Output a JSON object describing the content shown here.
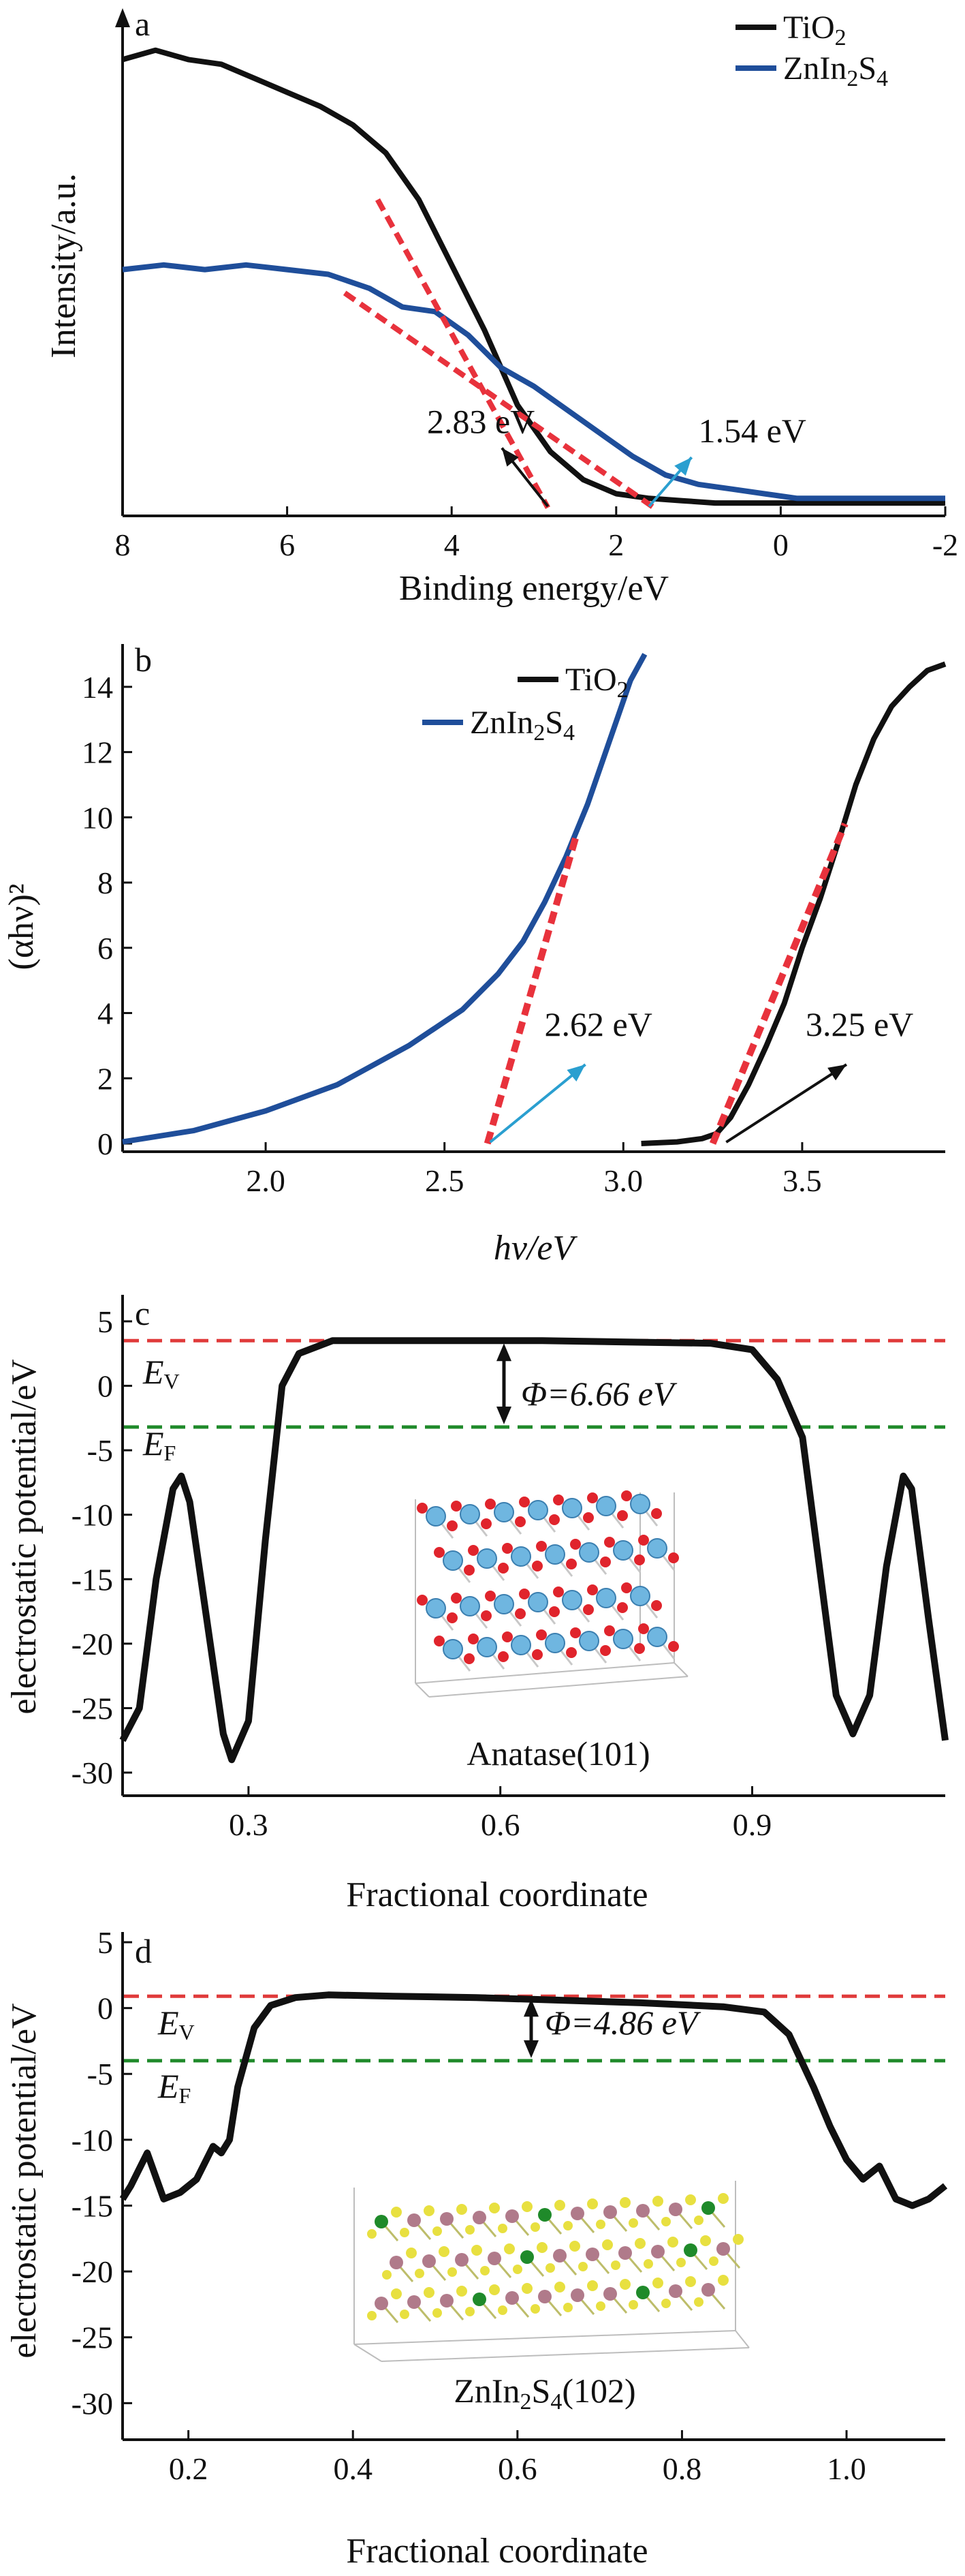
{
  "colors": {
    "tio2": "#111111",
    "znin2s4": "#1f4e9a",
    "fit": "#e8323c",
    "ev_line": "#e03a3a",
    "ef_line": "#1f8a2a",
    "arrow_a": "#111111",
    "arrow_b": "#2a9fd0"
  },
  "chart_data": [
    {
      "id": "a",
      "type": "line",
      "panel_label": "a",
      "xlabel": "Binding energy/eV",
      "ylabel": "Intensity/a.u.",
      "xlim": [
        8,
        -2
      ],
      "ylim": [
        0,
        1
      ],
      "xticks": [
        "8",
        "6",
        "4",
        "2",
        "0",
        "-2"
      ],
      "legend": [
        "TiO2",
        "ZnIn2S4"
      ],
      "series": [
        {
          "name": "TiO2",
          "color": "#111111",
          "x": [
            8.0,
            7.6,
            7.2,
            6.8,
            6.4,
            6.0,
            5.6,
            5.2,
            4.8,
            4.4,
            4.0,
            3.6,
            3.2,
            2.8,
            2.4,
            2.0,
            1.6,
            1.2,
            0.8,
            0.4,
            0.0,
            -0.5,
            -1.0,
            -1.5,
            -2.0
          ],
          "y": [
            0.96,
            0.98,
            0.96,
            0.95,
            0.92,
            0.89,
            0.86,
            0.82,
            0.76,
            0.66,
            0.52,
            0.38,
            0.22,
            0.12,
            0.06,
            0.03,
            0.02,
            0.015,
            0.01,
            0.01,
            0.01,
            0.01,
            0.01,
            0.01,
            0.01
          ]
        },
        {
          "name": "ZnIn2S4",
          "color": "#1f4e9a",
          "x": [
            8.0,
            7.5,
            7.0,
            6.5,
            6.0,
            5.5,
            5.0,
            4.6,
            4.2,
            3.8,
            3.4,
            3.0,
            2.6,
            2.2,
            1.8,
            1.4,
            1.0,
            0.6,
            0.2,
            -0.2,
            -0.6,
            -1.0,
            -1.5,
            -2.0
          ],
          "y": [
            0.51,
            0.52,
            0.51,
            0.52,
            0.51,
            0.5,
            0.47,
            0.43,
            0.42,
            0.37,
            0.3,
            0.26,
            0.21,
            0.16,
            0.11,
            0.07,
            0.05,
            0.04,
            0.03,
            0.02,
            0.02,
            0.02,
            0.02,
            0.02
          ]
        }
      ],
      "fits": [
        {
          "x": [
            4.9,
            2.83
          ],
          "y": [
            0.66,
            0.0
          ]
        },
        {
          "x": [
            5.3,
            1.54
          ],
          "y": [
            0.46,
            0.0
          ]
        }
      ],
      "annotations": [
        {
          "text": "2.83 eV",
          "tx": 4.3,
          "ty": 0.16,
          "fx": 2.83,
          "fy": 0.0,
          "arrow": "arrow_a"
        },
        {
          "text": "1.54 eV",
          "tx": 1.0,
          "ty": 0.14,
          "fx": 1.6,
          "fy": 0.0,
          "arrow": "arrow_b"
        }
      ]
    },
    {
      "id": "b",
      "type": "line",
      "panel_label": "b",
      "xlabel": "hν/eV",
      "ylabel": "(αhν)²",
      "xlim": [
        1.6,
        3.9
      ],
      "ylim": [
        0,
        15
      ],
      "xticks": [
        "2.0",
        "2.5",
        "3.0",
        "3.5"
      ],
      "yticks": [
        "0",
        "2",
        "4",
        "6",
        "8",
        "10",
        "12",
        "14"
      ],
      "legend": [
        "TiO2",
        "ZnIn2S4"
      ],
      "series": [
        {
          "name": "TiO2",
          "color": "#111111",
          "x": [
            3.05,
            3.15,
            3.22,
            3.26,
            3.3,
            3.35,
            3.4,
            3.45,
            3.5,
            3.55,
            3.6,
            3.65,
            3.7,
            3.75,
            3.8,
            3.85,
            3.9
          ],
          "y": [
            0.0,
            0.05,
            0.15,
            0.3,
            0.8,
            1.8,
            3.0,
            4.3,
            6.0,
            7.5,
            9.2,
            11.0,
            12.4,
            13.4,
            14.0,
            14.5,
            14.7
          ]
        },
        {
          "name": "ZnIn2S4",
          "color": "#1f4e9a",
          "x": [
            1.6,
            1.8,
            2.0,
            2.2,
            2.4,
            2.55,
            2.65,
            2.72,
            2.78,
            2.84,
            2.9,
            2.96,
            3.02,
            3.06
          ],
          "y": [
            0.05,
            0.4,
            1.0,
            1.8,
            3.0,
            4.1,
            5.2,
            6.2,
            7.4,
            8.8,
            10.4,
            12.3,
            14.2,
            15.0
          ]
        }
      ],
      "fits": [
        {
          "x": [
            2.62,
            2.87
          ],
          "y": [
            0.0,
            9.5
          ]
        },
        {
          "x": [
            3.25,
            3.62
          ],
          "y": [
            0.0,
            9.8
          ]
        }
      ],
      "annotations": [
        {
          "text": "2.62 eV",
          "tx": 2.97,
          "ty": 3.3,
          "fx": 2.62,
          "fy": 0.0,
          "arrow": "arrow_b"
        },
        {
          "text": "3.25 eV",
          "tx": 3.7,
          "ty": 3.3,
          "fx": 3.28,
          "fy": 0.0,
          "arrow": "arrow_a"
        }
      ]
    },
    {
      "id": "c",
      "type": "line",
      "panel_label": "c",
      "xlabel": "Fractional coordinate",
      "ylabel": "electrostatic potential/eV",
      "xlim": [
        0.15,
        1.13
      ],
      "ylim": [
        -31,
        6
      ],
      "xticks": [
        "0.3",
        "0.6",
        "0.9"
      ],
      "yticks": [
        "5",
        "0",
        "-5",
        "-10",
        "-15",
        "-20",
        "-25",
        "-30"
      ],
      "ev": 3.5,
      "ef": -3.2,
      "ev_label": "EV",
      "ef_label": "EF",
      "phi_text": "Φ=6.66 eV",
      "inset_label": "Anatase(101)",
      "series": [
        {
          "name": "potential",
          "color": "#111111",
          "x": [
            0.15,
            0.17,
            0.19,
            0.21,
            0.22,
            0.23,
            0.25,
            0.27,
            0.28,
            0.3,
            0.32,
            0.34,
            0.36,
            0.4,
            0.45,
            0.55,
            0.65,
            0.75,
            0.85,
            0.9,
            0.93,
            0.96,
            0.98,
            1.0,
            1.02,
            1.04,
            1.06,
            1.08,
            1.09,
            1.11,
            1.13
          ],
          "y": [
            -27.5,
            -25.0,
            -15.0,
            -8.0,
            -7.0,
            -9.0,
            -18.0,
            -27.0,
            -29.0,
            -26.0,
            -12.0,
            0.0,
            2.5,
            3.5,
            3.5,
            3.5,
            3.5,
            3.4,
            3.3,
            2.8,
            0.5,
            -4.0,
            -14.0,
            -24.0,
            -27.0,
            -24.0,
            -14.0,
            -7.0,
            -8.0,
            -18.0,
            -27.5
          ]
        }
      ]
    },
    {
      "id": "d",
      "type": "line",
      "panel_label": "d",
      "xlabel": "Fractional coordinate",
      "ylabel": "electrostatic potential/eV",
      "xlim": [
        0.12,
        1.12
      ],
      "ylim": [
        -32,
        5
      ],
      "xticks": [
        "0.2",
        "0.4",
        "0.6",
        "0.8",
        "1.0"
      ],
      "yticks": [
        "5",
        "0",
        "-5",
        "-10",
        "-15",
        "-20",
        "-25",
        "-30"
      ],
      "ev": 0.9,
      "ef": -4.0,
      "ev_label": "EV",
      "ef_label": "EF",
      "phi_text": "Φ=4.86 eV",
      "inset_label": "ZnIn2S4(102)",
      "series": [
        {
          "name": "potential",
          "color": "#111111",
          "x": [
            0.12,
            0.13,
            0.15,
            0.17,
            0.19,
            0.21,
            0.23,
            0.24,
            0.25,
            0.26,
            0.28,
            0.3,
            0.33,
            0.37,
            0.45,
            0.55,
            0.65,
            0.75,
            0.85,
            0.9,
            0.93,
            0.96,
            0.98,
            1.0,
            1.02,
            1.04,
            1.06,
            1.08,
            1.1,
            1.12
          ],
          "y": [
            -14.5,
            -13.5,
            -11.0,
            -14.5,
            -14.0,
            -13.0,
            -10.5,
            -11.0,
            -10.0,
            -6.0,
            -1.5,
            0.2,
            0.8,
            1.0,
            0.9,
            0.8,
            0.6,
            0.4,
            0.1,
            -0.3,
            -2.0,
            -6.0,
            -9.0,
            -11.5,
            -13.0,
            -12.0,
            -14.5,
            -15.0,
            -14.5,
            -13.5
          ]
        }
      ]
    }
  ]
}
